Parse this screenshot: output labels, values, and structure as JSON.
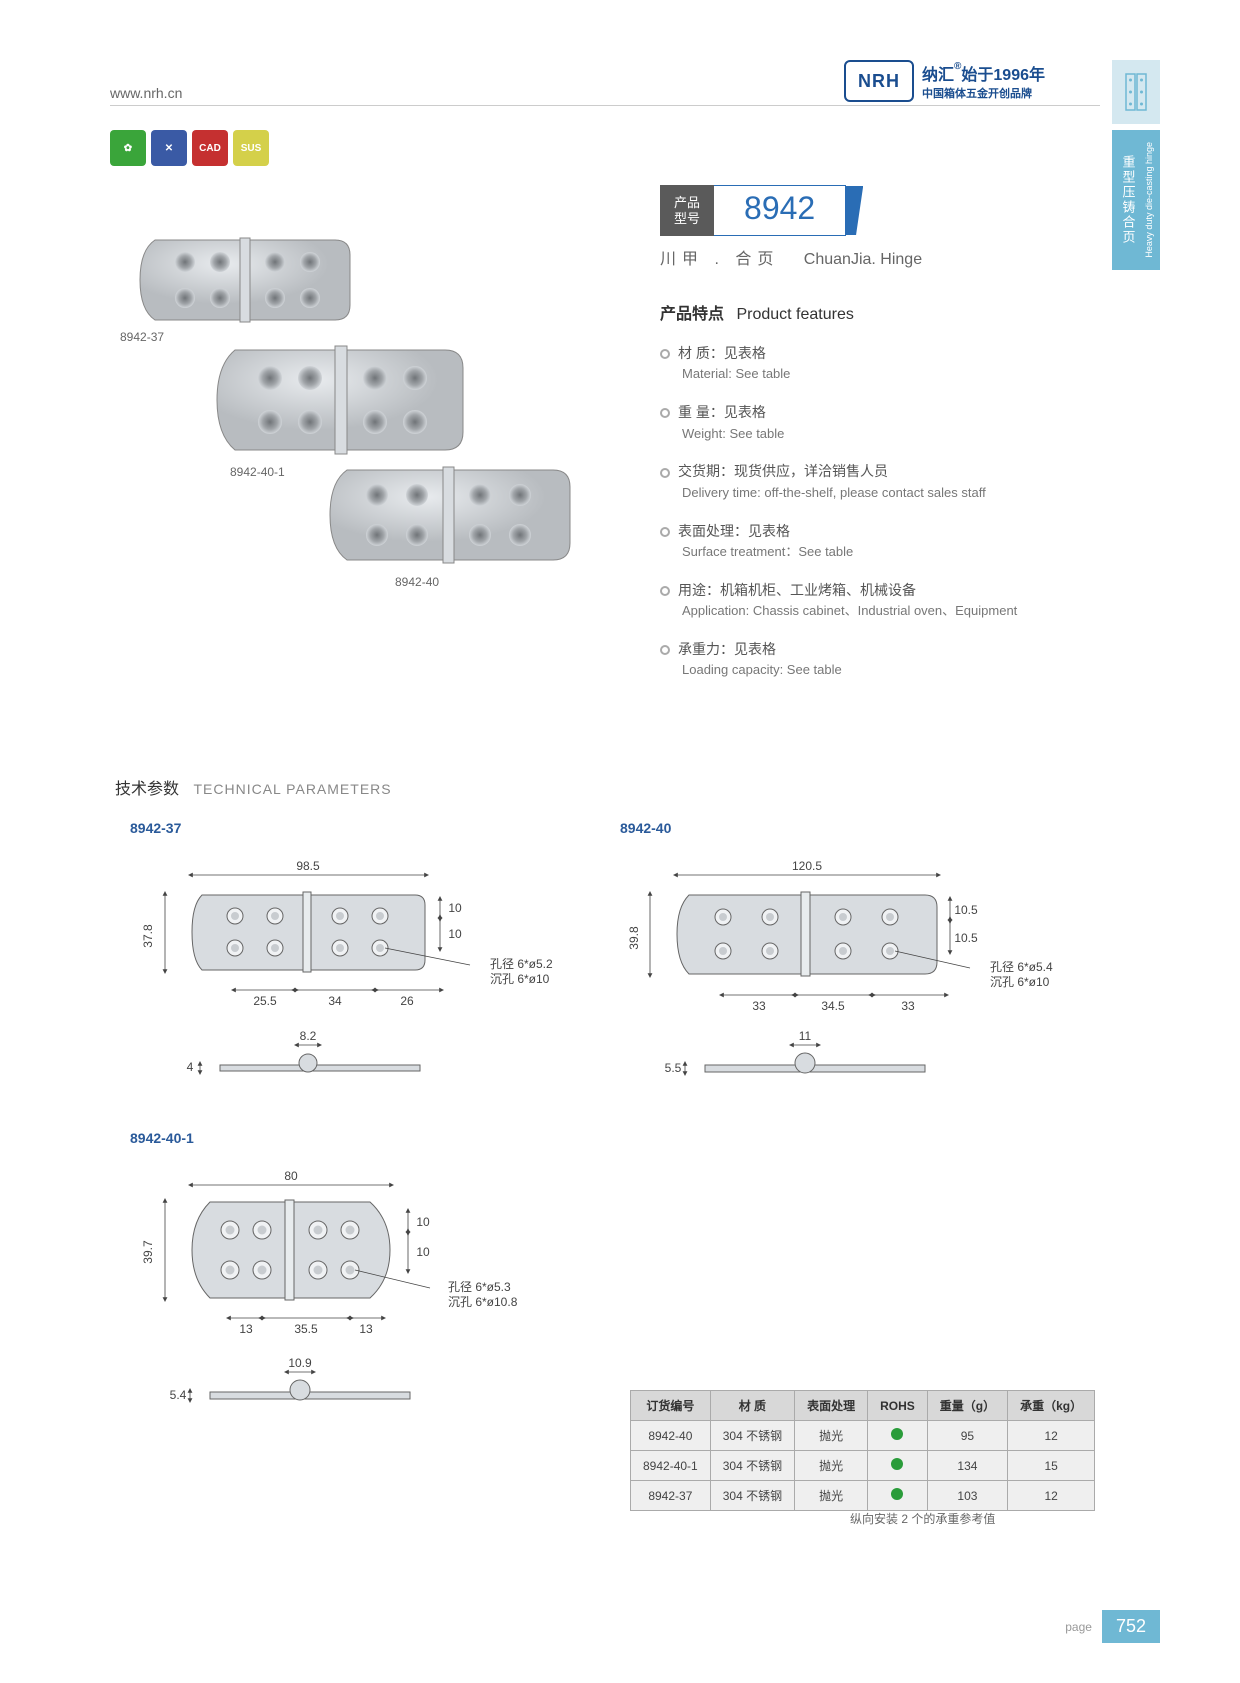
{
  "header": {
    "url": "www.nrh.cn",
    "logo_mark": "NRH",
    "logo_line1_a": "纳汇",
    "logo_line1_sup": "®",
    "logo_line1_b": "始于1996年",
    "logo_line2": "中国箱体五金开创品牌"
  },
  "side_tab": {
    "cn": "重型压铸合页",
    "en": "Heavy duty die-casting hinge"
  },
  "icons": [
    {
      "bg": "#3aa53a",
      "text": "✿"
    },
    {
      "bg": "#3a5aa5",
      "text": "✕"
    },
    {
      "bg": "#c53030",
      "text": "CAD"
    },
    {
      "bg": "#d4d04a",
      "text": "SUS"
    }
  ],
  "product_labels": {
    "p1": "8942-37",
    "p2": "8942-40-1",
    "p3": "8942-40"
  },
  "model": {
    "label": "产品\n型号",
    "number": "8942"
  },
  "subtitle": {
    "cn": "川甲 . 合页",
    "en": "ChuanJia. Hinge"
  },
  "features": {
    "title_cn": "产品特点",
    "title_en": "Product features",
    "items": [
      {
        "cn": "材 质：见表格",
        "en": "Material: See table"
      },
      {
        "cn": "重 量：见表格",
        "en": "Weight: See table"
      },
      {
        "cn": "交货期：现货供应，详洽销售人员",
        "en": "Delivery time: off-the-shelf, please contact sales staff"
      },
      {
        "cn": "表面处理：见表格",
        "en": "Surface treatment：See table"
      },
      {
        "cn": "用途：机箱机柜、工业烤箱、机械设备",
        "en": "Application: Chassis cabinet、Industrial oven、Equipment"
      },
      {
        "cn": "承重力：见表格",
        "en": "Loading capacity: See table"
      }
    ]
  },
  "tech": {
    "title_cn": "技术参数",
    "title_en": "TECHNICAL PARAMETERS"
  },
  "diagrams": {
    "d1": {
      "label": "8942-37",
      "width": "98.5",
      "height": "37.8",
      "dims": [
        "25.5",
        "34",
        "26"
      ],
      "v_dims": [
        "10",
        "10"
      ],
      "hole_cn": "孔径 6*ø5.2",
      "hole_en": "沉孔 6*ø10",
      "side_w": "8.2",
      "side_h": "4"
    },
    "d2": {
      "label": "8942-40",
      "width": "120.5",
      "height": "39.8",
      "dims": [
        "33",
        "34.5",
        "33"
      ],
      "v_dims": [
        "10.5",
        "10.5"
      ],
      "hole_cn": "孔径 6*ø5.4",
      "hole_en": "沉孔 6*ø10",
      "side_w": "11",
      "side_h": "5.5"
    },
    "d3": {
      "label": "8942-40-1",
      "width": "80",
      "height": "39.7",
      "dims": [
        "13",
        "35.5",
        "13"
      ],
      "v_dims": [
        "10",
        "10"
      ],
      "hole_cn": "孔径 6*ø5.3",
      "hole_en": "沉孔 6*ø10.8",
      "side_w": "10.9",
      "side_h": "5.4"
    }
  },
  "table": {
    "headers": [
      "订货编号",
      "材 质",
      "表面处理",
      "ROHS",
      "重量（g）",
      "承重（kg）"
    ],
    "rows": [
      [
        "8942-40",
        "304 不锈钢",
        "抛光",
        "●",
        "95",
        "12"
      ],
      [
        "8942-40-1",
        "304 不锈钢",
        "抛光",
        "●",
        "134",
        "15"
      ],
      [
        "8942-37",
        "304 不锈钢",
        "抛光",
        "●",
        "103",
        "12"
      ]
    ],
    "note": "纵向安装 2 个的承重参考值"
  },
  "footer": {
    "page_label": "page",
    "page_num": "752"
  }
}
